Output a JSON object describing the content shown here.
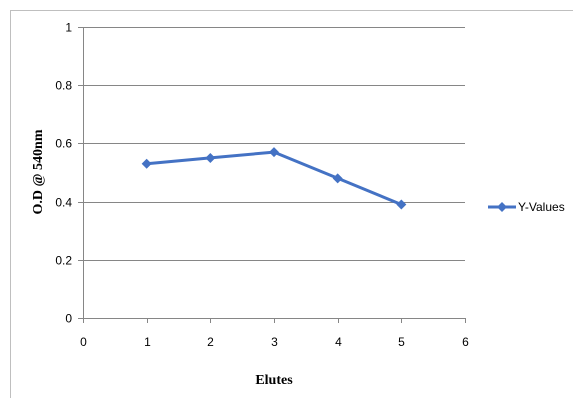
{
  "chart_data": {
    "type": "line",
    "title": "",
    "xlabel": "Elutes",
    "ylabel": "O.D @ 540nm",
    "xlim": [
      0,
      6
    ],
    "ylim": [
      0,
      1
    ],
    "x_ticks": [
      0,
      1,
      2,
      3,
      4,
      5,
      6
    ],
    "y_ticks": [
      0,
      0.2,
      0.4,
      0.6,
      0.8,
      1
    ],
    "grid": "horizontal",
    "legend_position": "right",
    "series": [
      {
        "name": "Y-Values",
        "color": "#4472c4",
        "marker": "diamond",
        "x": [
          1,
          2,
          3,
          4,
          5
        ],
        "y": [
          0.53,
          0.55,
          0.57,
          0.48,
          0.39
        ]
      }
    ]
  }
}
